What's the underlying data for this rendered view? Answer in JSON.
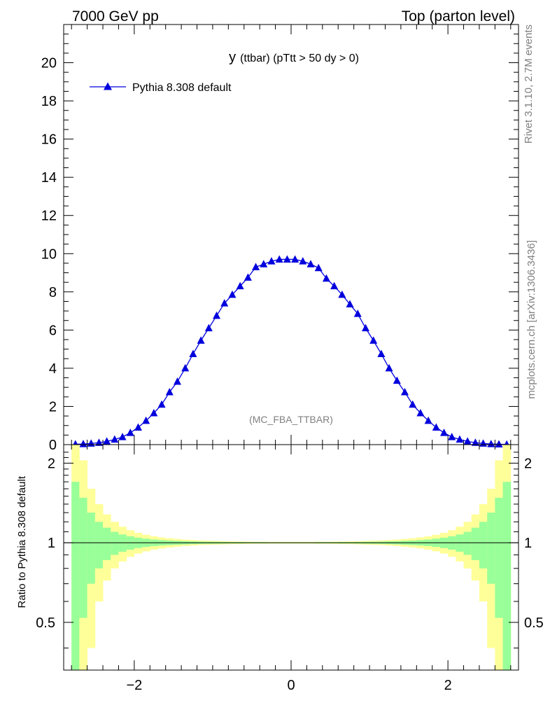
{
  "header": {
    "left": "7000 GeV pp",
    "right": "Top (parton level)"
  },
  "side": {
    "rivet": "Rivet 3.1.10,  2.7M events",
    "mcplots": "mcplots.cern.ch [arXiv:1306.3436]"
  },
  "colors": {
    "series": "#0000dd",
    "band_inner": "#99ff99",
    "band_outer": "#ffff99"
  },
  "chart_data": [
    {
      "type": "line",
      "title": "y (ttbar) (pTtt > 50 dy > 0)",
      "title_main": "y",
      "title_sub": "(ttbar) (pTtt > 50 dy > 0)",
      "watermark": "(MC_FBA_TTBAR)",
      "xlim": [
        -2.9,
        2.9
      ],
      "ylim": [
        0,
        22
      ],
      "yticks": [
        0,
        2,
        4,
        6,
        8,
        10,
        12,
        14,
        16,
        18,
        20
      ],
      "ytick_labels": [
        "0",
        "2",
        "4",
        "6",
        "8",
        "10",
        "12",
        "14",
        "16",
        "18",
        "20"
      ],
      "legend": "top-left",
      "series": [
        {
          "name": "Pythia 8.308 default",
          "marker": "triangle",
          "x": [
            -2.75,
            -2.65,
            -2.55,
            -2.45,
            -2.35,
            -2.25,
            -2.15,
            -2.05,
            -1.95,
            -1.85,
            -1.75,
            -1.65,
            -1.55,
            -1.45,
            -1.35,
            -1.25,
            -1.15,
            -1.05,
            -0.95,
            -0.85,
            -0.75,
            -0.65,
            -0.55,
            -0.45,
            -0.35,
            -0.25,
            -0.15,
            -0.05,
            0.05,
            0.15,
            0.25,
            0.35,
            0.45,
            0.55,
            0.65,
            0.75,
            0.85,
            0.95,
            1.05,
            1.15,
            1.25,
            1.35,
            1.45,
            1.55,
            1.65,
            1.75,
            1.85,
            1.95,
            2.05,
            2.15,
            2.25,
            2.35,
            2.45,
            2.55,
            2.65,
            2.75
          ],
          "y": [
            0.02,
            0.03,
            0.06,
            0.1,
            0.17,
            0.27,
            0.4,
            0.62,
            0.9,
            1.25,
            1.65,
            2.1,
            2.75,
            3.3,
            4.0,
            4.75,
            5.45,
            6.1,
            6.75,
            7.4,
            7.85,
            8.3,
            8.75,
            9.3,
            9.45,
            9.6,
            9.7,
            9.7,
            9.7,
            9.6,
            9.45,
            9.25,
            8.7,
            8.3,
            7.85,
            7.35,
            6.85,
            6.1,
            5.45,
            4.75,
            4.0,
            3.35,
            2.75,
            2.1,
            1.65,
            1.25,
            0.9,
            0.62,
            0.4,
            0.27,
            0.17,
            0.1,
            0.06,
            0.03,
            0.02,
            0.01
          ]
        }
      ]
    },
    {
      "type": "area",
      "ylabel": "Ratio to Pythia 8.308 default",
      "xlim": [
        -2.9,
        2.9
      ],
      "ylim": [
        0.33,
        2.35
      ],
      "yscale": "log",
      "xticks": [
        -2,
        0,
        2
      ],
      "xtick_labels": [
        "−2",
        "0",
        "2"
      ],
      "yticks": [
        0.5,
        1,
        2
      ],
      "ytick_labels": [
        "0.5",
        "1",
        "2"
      ],
      "reference_line": 1,
      "x_edges": [
        -2.8,
        -2.7,
        -2.6,
        -2.5,
        -2.4,
        -2.3,
        -2.2,
        -2.1,
        -2.0,
        -1.9,
        -1.8,
        -1.7,
        -1.6,
        -1.5,
        -1.4,
        -1.3,
        -1.2,
        -1.1,
        -1.0,
        -0.9,
        -0.8,
        -0.7,
        -0.6,
        -0.5,
        -0.4,
        -0.3,
        -0.2,
        -0.1,
        0.0,
        0.1,
        0.2,
        0.3,
        0.4,
        0.5,
        0.6,
        0.7,
        0.8,
        0.9,
        1.0,
        1.1,
        1.2,
        1.3,
        1.4,
        1.5,
        1.6,
        1.7,
        1.8,
        1.9,
        2.0,
        2.1,
        2.2,
        2.3,
        2.4,
        2.5,
        2.6,
        2.7,
        2.8
      ],
      "inner_rel_err": [
        0.7,
        0.48,
        0.3,
        0.2,
        0.14,
        0.1,
        0.075,
        0.058,
        0.045,
        0.036,
        0.029,
        0.024,
        0.02,
        0.017,
        0.014,
        0.012,
        0.01,
        0.009,
        0.008,
        0.007,
        0.006,
        0.006,
        0.005,
        0.005,
        0.005,
        0.004,
        0.004,
        0.004,
        0.004,
        0.004,
        0.004,
        0.005,
        0.005,
        0.005,
        0.006,
        0.006,
        0.007,
        0.008,
        0.009,
        0.01,
        0.012,
        0.014,
        0.017,
        0.02,
        0.024,
        0.029,
        0.036,
        0.045,
        0.058,
        0.075,
        0.1,
        0.14,
        0.2,
        0.3,
        0.48,
        0.7
      ],
      "outer_rel_err": [
        1.6,
        1.05,
        0.6,
        0.4,
        0.28,
        0.2,
        0.15,
        0.115,
        0.09,
        0.072,
        0.058,
        0.048,
        0.04,
        0.034,
        0.028,
        0.024,
        0.02,
        0.018,
        0.016,
        0.014,
        0.012,
        0.011,
        0.01,
        0.009,
        0.009,
        0.008,
        0.008,
        0.008,
        0.008,
        0.008,
        0.008,
        0.009,
        0.009,
        0.01,
        0.011,
        0.012,
        0.014,
        0.016,
        0.018,
        0.02,
        0.024,
        0.028,
        0.034,
        0.04,
        0.048,
        0.058,
        0.072,
        0.09,
        0.115,
        0.15,
        0.2,
        0.28,
        0.4,
        0.6,
        1.05,
        1.6
      ]
    }
  ]
}
